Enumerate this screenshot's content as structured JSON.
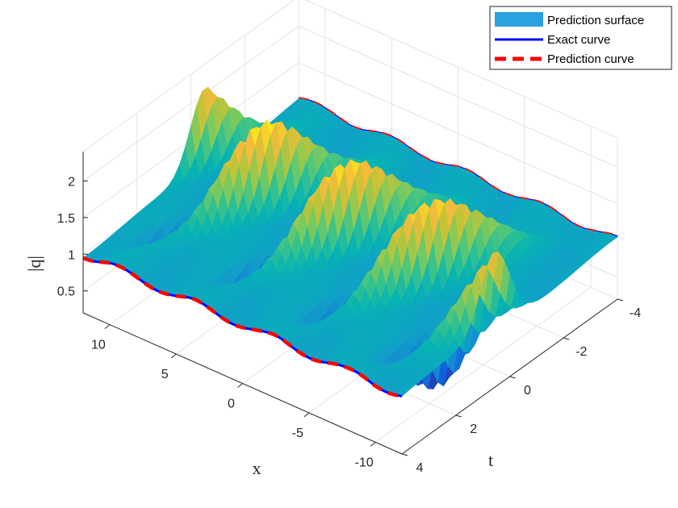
{
  "chart_data": {
    "type": "surface3d",
    "title": "",
    "xlabel": "x",
    "ylabel": "t",
    "zlabel": "|q|",
    "xlim": [
      -12,
      12
    ],
    "ylim": [
      -4,
      4
    ],
    "zlim": [
      0.2,
      2.4
    ],
    "x_ticks": [
      {
        "value": 10,
        "label": "10"
      },
      {
        "value": 5,
        "label": "5"
      },
      {
        "value": 0,
        "label": "0"
      },
      {
        "value": -5,
        "label": "-5"
      },
      {
        "value": -10,
        "label": "-10"
      }
    ],
    "t_ticks": [
      {
        "value": -4,
        "label": "-4"
      },
      {
        "value": -2,
        "label": "-2"
      },
      {
        "value": 0,
        "label": "0"
      },
      {
        "value": 2,
        "label": "2"
      },
      {
        "value": 4,
        "label": "4"
      }
    ],
    "z_ticks": [
      {
        "value": 0.5,
        "label": "0.5"
      },
      {
        "value": 1,
        "label": "1"
      },
      {
        "value": 1.5,
        "label": "1.5"
      },
      {
        "value": 2,
        "label": "2"
      }
    ],
    "model": {
      "background": 1.0,
      "peak_height": 2.2,
      "peak_width": 0.55,
      "dip_depth": 0.75,
      "dip_offset": 1.3,
      "peak_spacing": 6.3,
      "peak_drift_per_t": 0.9
    },
    "front_curve_t": 4,
    "back_curve_t": -4,
    "legend": {
      "position": "top-right",
      "items": [
        {
          "label": "Prediction surface",
          "style": "patch",
          "color": "#2aa1e0"
        },
        {
          "label": "Exact curve",
          "style": "solid",
          "color": "#0000ff"
        },
        {
          "label": "Prediction curve",
          "style": "dashed",
          "color": "#ff0000"
        }
      ]
    }
  }
}
